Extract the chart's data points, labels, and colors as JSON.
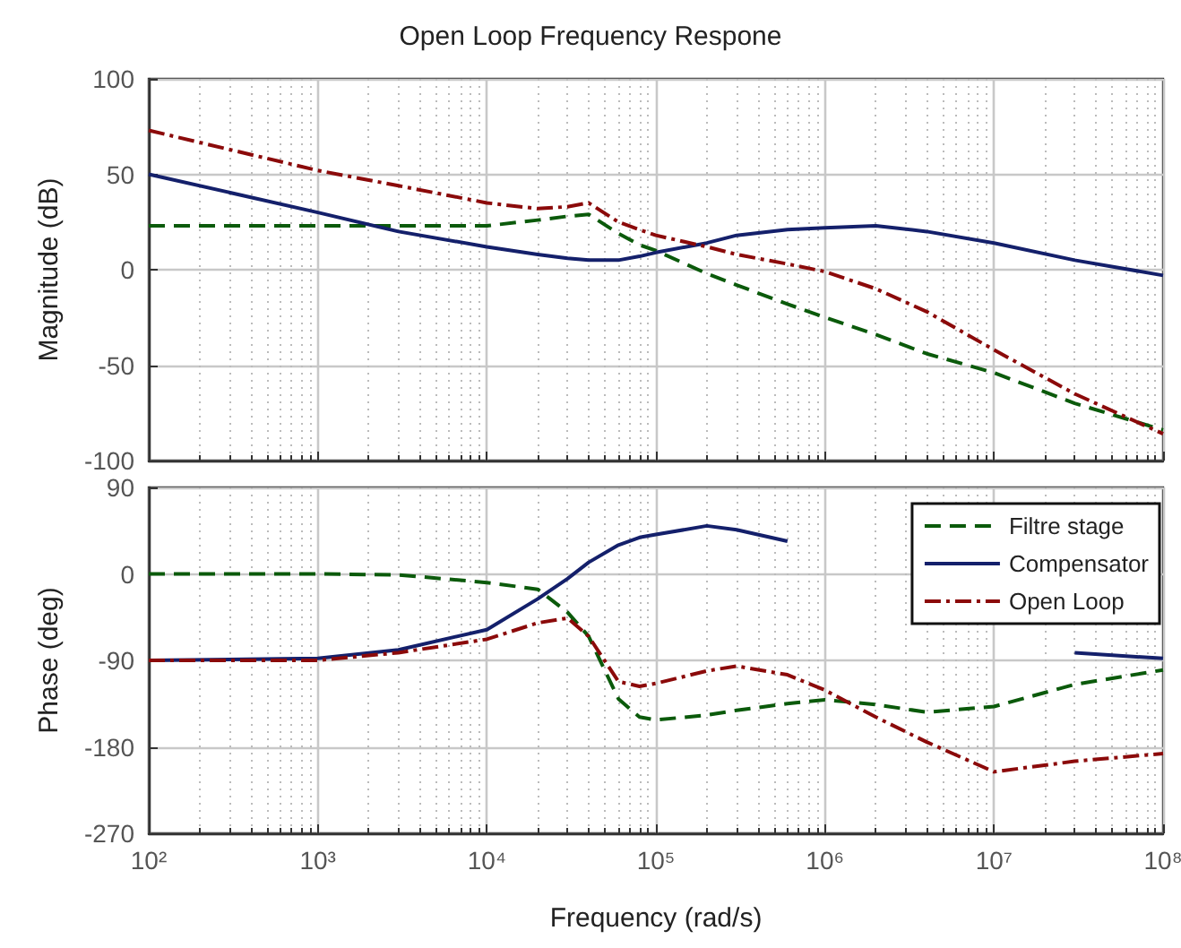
{
  "chart_data": [
    {
      "type": "line",
      "title": "Open Loop Frequency Respone",
      "ylabel": "Magnitude (dB)",
      "log": "x",
      "x": [
        100,
        1000,
        3000,
        10000,
        20000,
        30000,
        40000,
        60000,
        80000,
        100000,
        200000,
        300000,
        600000,
        1000000,
        2000000,
        4000000,
        10000000,
        30000000,
        100000000
      ],
      "series": [
        {
          "color": "#0b5a0b",
          "line_style": "dashed",
          "values": [
            23,
            23,
            23,
            23,
            26,
            28,
            29,
            19,
            13,
            10,
            -2,
            -8,
            -18,
            -25,
            -34,
            -44,
            -54,
            -70,
            -84
          ]
        },
        {
          "color": "#14206b",
          "line_style": "solid",
          "values": [
            50,
            30,
            20,
            12,
            8,
            6,
            5,
            5,
            7,
            9,
            14,
            18,
            21,
            22,
            23,
            20,
            14,
            5,
            -3
          ]
        },
        {
          "color": "#8b0a0a",
          "line_style": "dashdot",
          "values": [
            73,
            52,
            44,
            35,
            32,
            33,
            35,
            25,
            21,
            18,
            12,
            8,
            3,
            -1,
            -10,
            -22,
            -42,
            -65,
            -86
          ]
        }
      ],
      "xlim": [
        100,
        100000000
      ],
      "ylim": [
        -100,
        100
      ],
      "yticks": [
        -100,
        -50,
        0,
        50,
        100
      ],
      "xticks": [
        {
          "value": 100,
          "label": null
        },
        {
          "value": 1000,
          "label": null
        },
        {
          "value": 10000,
          "label": null
        },
        {
          "value": 100000,
          "label": null
        },
        {
          "value": 1000000,
          "label": null
        },
        {
          "value": 10000000,
          "label": null
        },
        {
          "value": 100000000,
          "label": null
        }
      ],
      "tick_labels": "y",
      "grid": true,
      "legend": false,
      "marker": "none"
    },
    {
      "type": "line",
      "xlabel": "Frequency (rad/s)",
      "ylabel": "Phase (deg)",
      "log": "x",
      "x": [
        100,
        1000,
        3000,
        10000,
        20000,
        30000,
        40000,
        60000,
        80000,
        100000,
        200000,
        300000,
        600000,
        1000000,
        2000000,
        4000000,
        10000000,
        30000000,
        100000000
      ],
      "series": [
        {
          "name": "Filtre stage",
          "color": "#0b5a0b",
          "line_style": "dashed",
          "values": [
            0,
            0,
            -1,
            -9,
            -16,
            -40,
            -65,
            -130,
            -149,
            -152,
            -147,
            -142,
            -135,
            -131,
            -136,
            -144,
            -138,
            -115,
            -100
          ]
        },
        {
          "name": "Compensator",
          "color": "#14206b",
          "line_style": "solid",
          "values": [
            -90,
            -88,
            -79,
            -58,
            -26,
            -5,
            12,
            30,
            38,
            41,
            50,
            46,
            34,
            null,
            null,
            null,
            null,
            -82,
            -88
          ]
        },
        {
          "name": "Open Loop",
          "color": "#8b0a0a",
          "line_style": "dashdot",
          "values": [
            -90,
            -90,
            -82,
            -68,
            -51,
            -46,
            -65,
            -112,
            -117,
            -114,
            -101,
            -96,
            -105,
            -121,
            -149,
            -175,
            -206,
            -195,
            -187
          ]
        }
      ],
      "xlim": [
        100,
        100000000
      ],
      "ylim": [
        -270,
        90
      ],
      "yticks": [
        -270,
        -180,
        -90,
        0,
        90
      ],
      "xticks": [
        {
          "value": 100,
          "label": "10²"
        },
        {
          "value": 1000,
          "label": "10³"
        },
        {
          "value": 10000,
          "label": "10⁴"
        },
        {
          "value": 100000,
          "label": "10⁵"
        },
        {
          "value": 1000000,
          "label": "10⁶"
        },
        {
          "value": 10000000,
          "label": "10⁷"
        },
        {
          "value": 100000000,
          "label": "10⁸"
        }
      ],
      "grid": true,
      "legend": "top right",
      "marker": "none"
    }
  ]
}
